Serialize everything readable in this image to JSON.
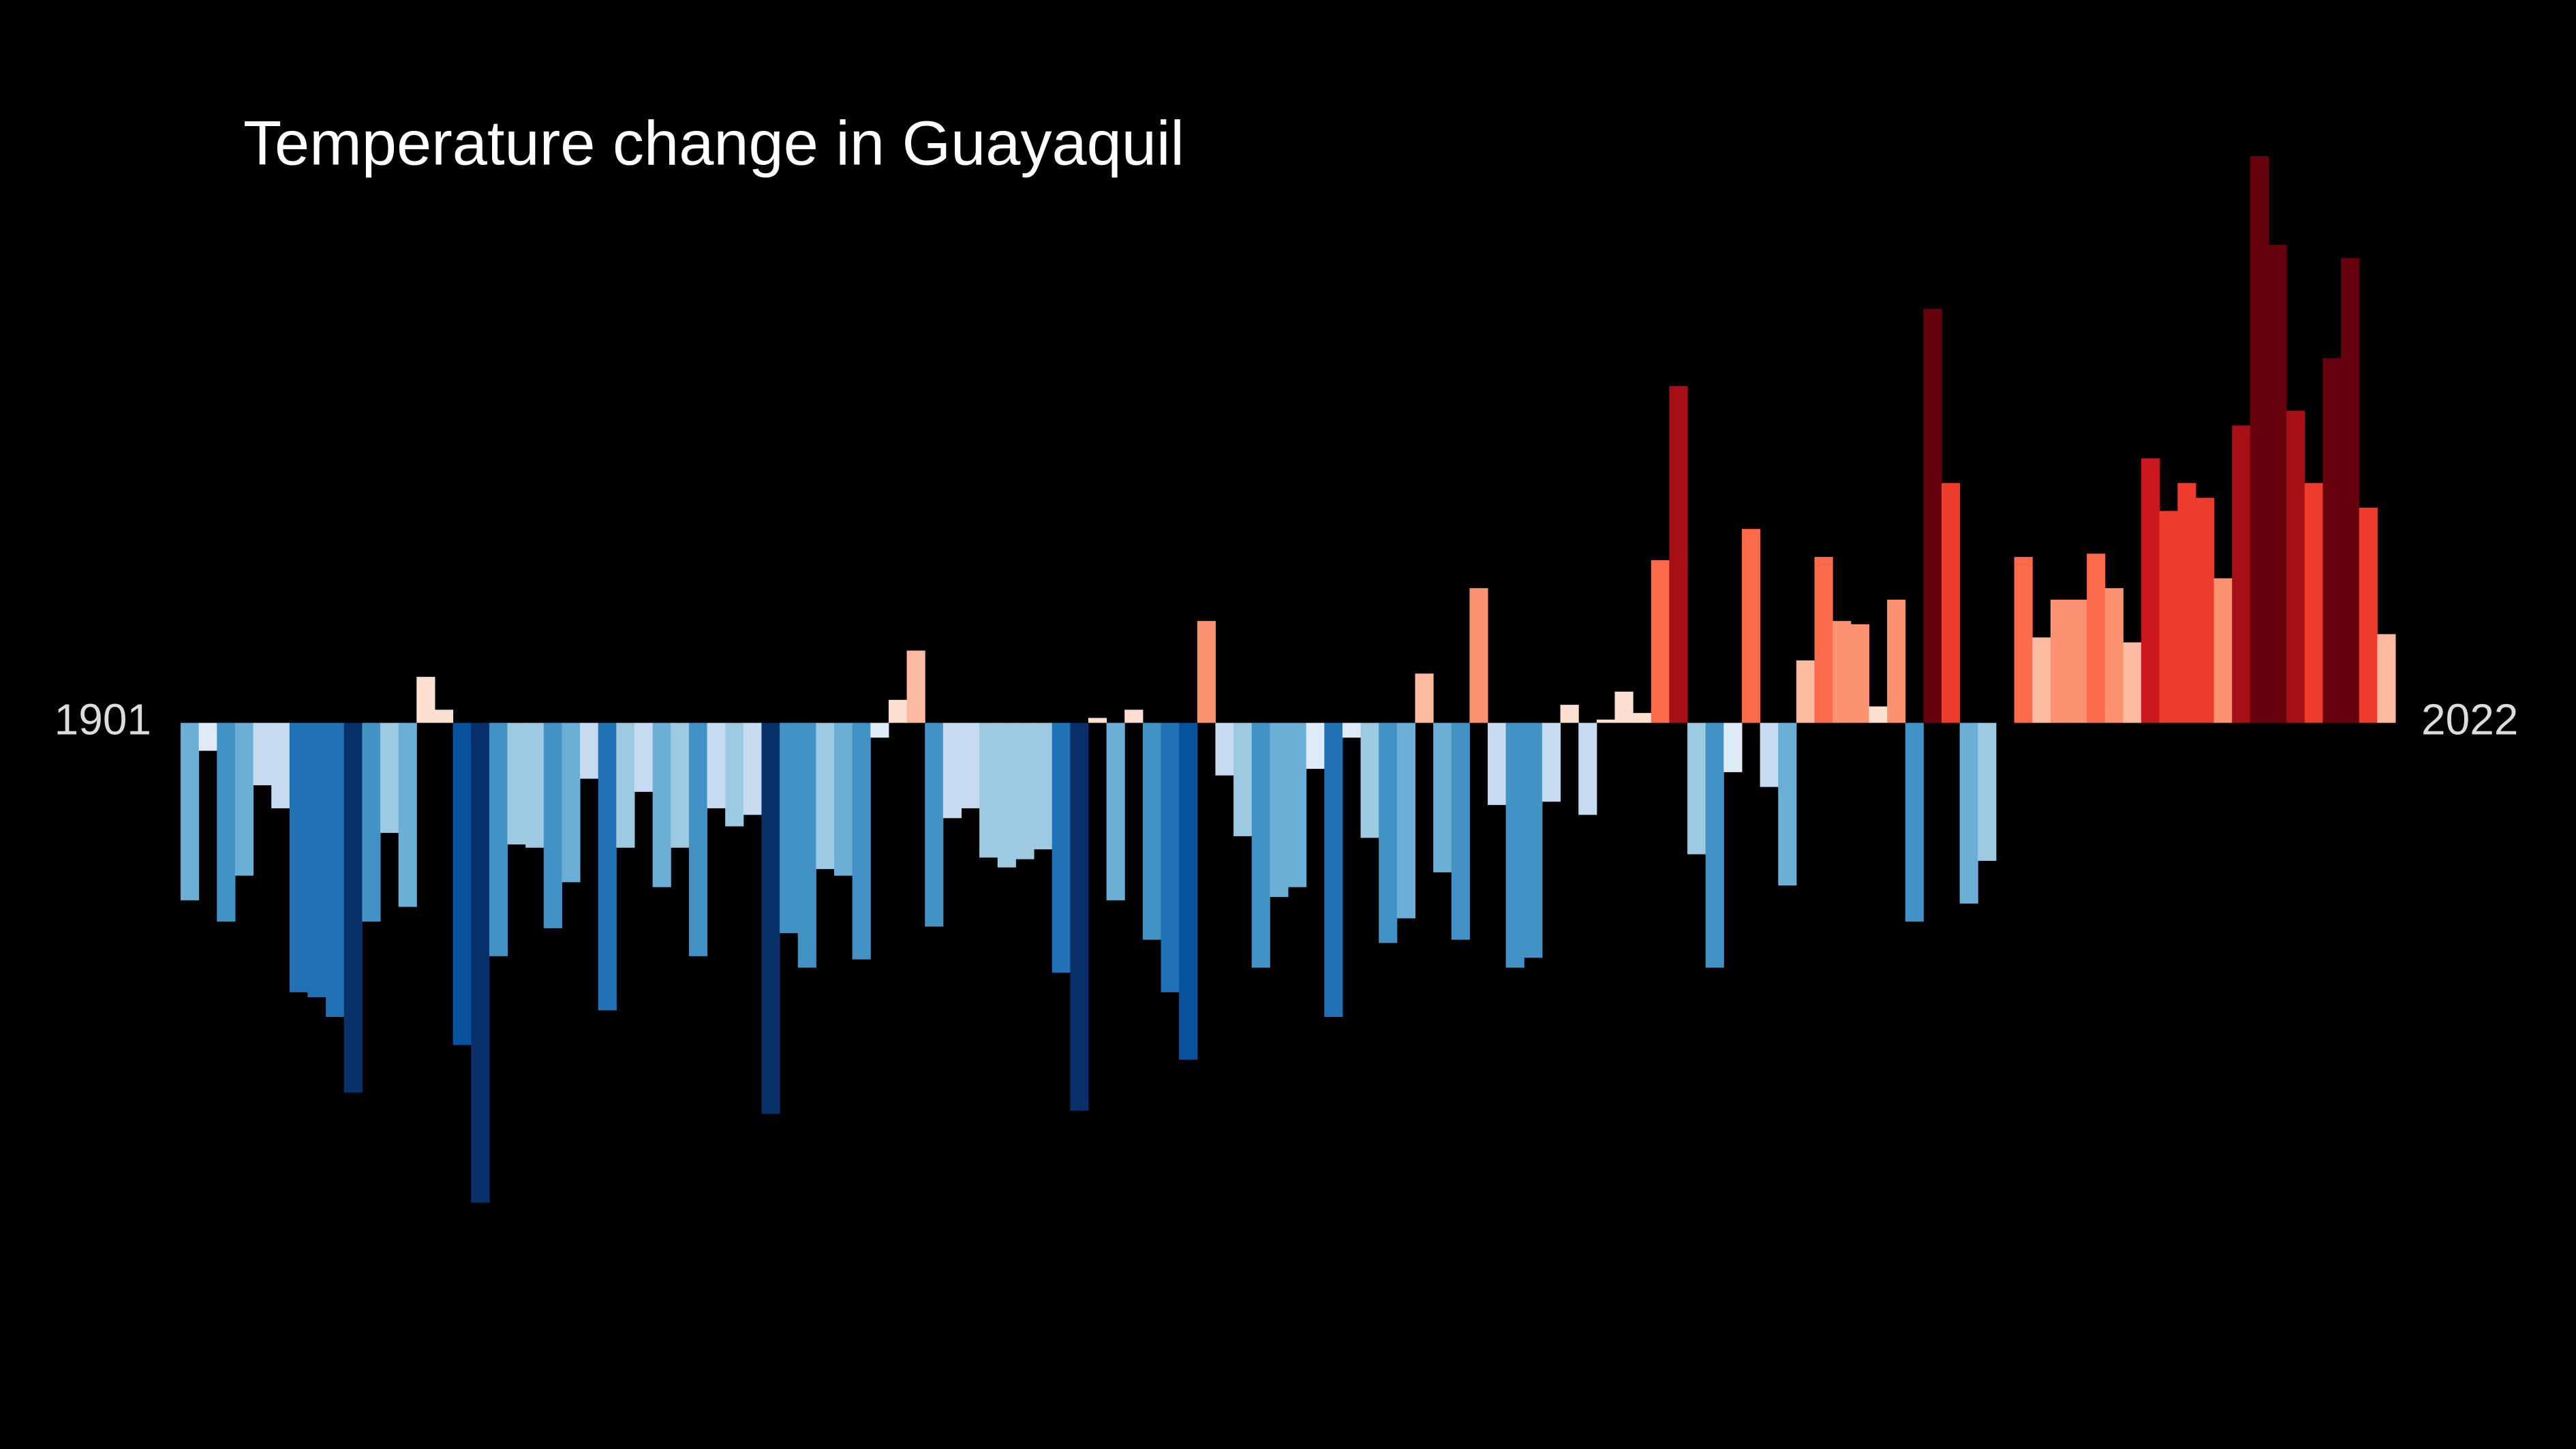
{
  "chart_data": {
    "type": "bar",
    "title": "Temperature change in Guayaquil",
    "categories": [
      "1901",
      null,
      null,
      null,
      null,
      null,
      null,
      null,
      null,
      null,
      null,
      null,
      null,
      null,
      null,
      null,
      null,
      null,
      null,
      null,
      null,
      null,
      null,
      null,
      null,
      null,
      null,
      null,
      null,
      null,
      null,
      null,
      null,
      null,
      null,
      null,
      null,
      null,
      null,
      null,
      null,
      null,
      null,
      null,
      null,
      null,
      null,
      null,
      null,
      null,
      null,
      null,
      null,
      null,
      null,
      null,
      null,
      null,
      null,
      null,
      null,
      null,
      null,
      null,
      null,
      null,
      null,
      null,
      null,
      null,
      null,
      null,
      null,
      null,
      null,
      null,
      null,
      null,
      null,
      null,
      null,
      null,
      null,
      null,
      null,
      null,
      null,
      null,
      null,
      null,
      null,
      null,
      null,
      null,
      null,
      null,
      null,
      null,
      null,
      null,
      null,
      null,
      null,
      null,
      null,
      null,
      null,
      null,
      null,
      null,
      null,
      null,
      null,
      null,
      null,
      null,
      null,
      null,
      null,
      null,
      null,
      "2022"
    ],
    "values": [
      -1.08,
      -0.17,
      -1.21,
      -0.93,
      -0.38,
      -0.52,
      -1.64,
      -1.67,
      -1.79,
      -2.25,
      -1.21,
      -0.67,
      -1.12,
      0.28,
      0.08,
      -1.96,
      -2.92,
      -1.42,
      -0.74,
      -0.76,
      -1.25,
      -0.97,
      -0.34,
      -1.75,
      -0.76,
      -0.42,
      -1.0,
      -0.76,
      -1.42,
      -0.52,
      -0.63,
      -0.56,
      -2.38,
      -1.28,
      -1.49,
      -0.89,
      -0.93,
      -1.44,
      -0.09,
      0.14,
      0.44,
      -1.24,
      -0.58,
      -0.52,
      -0.82,
      -0.88,
      -0.83,
      -0.77,
      -1.52,
      -2.36,
      0.03,
      -1.08,
      0.08,
      -1.32,
      -1.64,
      -2.05,
      0.62,
      -0.32,
      -0.69,
      -1.49,
      -1.06,
      -1.0,
      -0.28,
      -1.79,
      -0.09,
      -0.7,
      -1.34,
      -1.19,
      0.3,
      -0.91,
      -1.32,
      0.82,
      -0.5,
      -1.49,
      -1.43,
      -0.48,
      0.11,
      -0.56,
      0.02,
      0.19,
      0.06,
      0.99,
      2.05,
      -0.8,
      -1.49,
      -0.3,
      1.18,
      -0.39,
      -0.99,
      0.38,
      1.01,
      0.62,
      0.6,
      0.1,
      0.75,
      -1.21,
      2.52,
      1.46,
      -1.1,
      -0.84,
      0.0,
      1.01,
      0.52,
      0.75,
      0.75,
      1.03,
      0.82,
      0.49,
      1.61,
      1.29,
      1.46,
      1.37,
      0.88,
      1.81,
      3.45,
      2.91,
      1.9,
      1.46,
      2.22,
      2.83,
      1.31,
      0.54
    ],
    "ylim": [
      -4.42,
      4.4
    ],
    "palette": [
      "#08306b",
      "#08519c",
      "#2171b5",
      "#4292c6",
      "#6baed6",
      "#9ecae1",
      "#c6dbef",
      "#deebf7",
      "#fee0d2",
      "#fcbba1",
      "#fc9272",
      "#fb6a4a",
      "#ef3b2c",
      "#cb181d",
      "#a50f15",
      "#67000d"
    ],
    "color_range": [
      -2.4,
      2.4
    ]
  }
}
